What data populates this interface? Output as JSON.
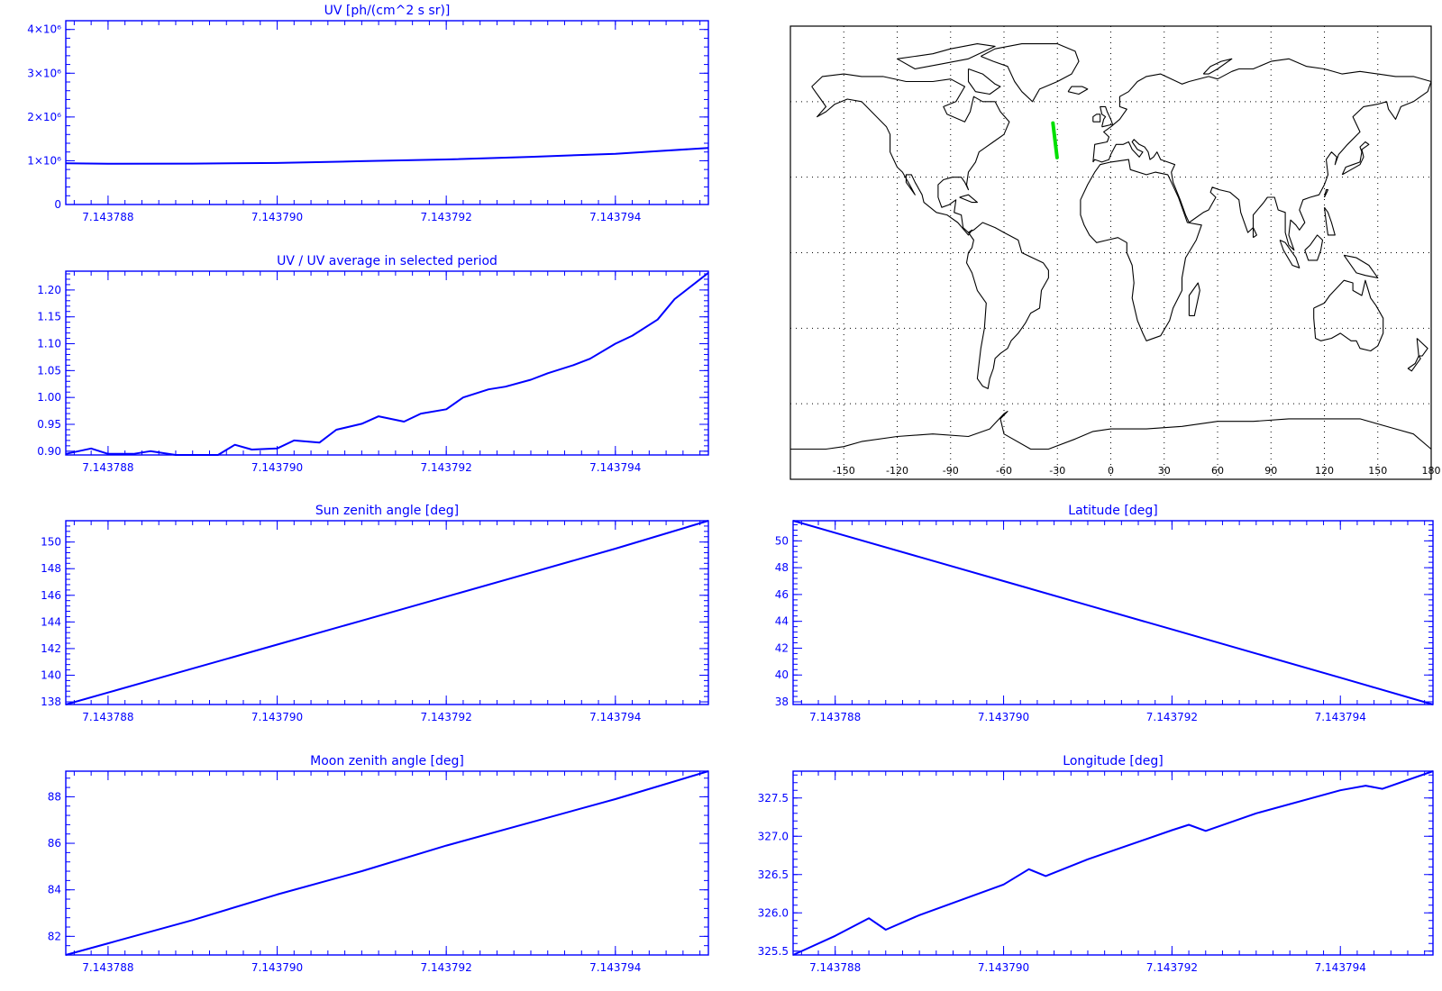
{
  "chart_data": [
    {
      "id": "uv",
      "type": "line",
      "title": "UV [ph/(cm^2 s sr)]",
      "xlabel": "",
      "ylabel": "",
      "xlim": [
        7.1437875,
        7.1437951
      ],
      "ylim": [
        0,
        4200000
      ],
      "xticks": [
        7.143788,
        7.14379,
        7.143792,
        7.143794
      ],
      "xtick_labels": [
        "7.143788",
        "7.143790",
        "7.143792",
        "7.143794"
      ],
      "yticks": [
        0,
        1000000,
        2000000,
        3000000,
        4000000
      ],
      "ytick_labels": [
        "0",
        "1×10⁶",
        "2×10⁶",
        "3×10⁶",
        "4×10⁶"
      ],
      "grid": false,
      "color": "#0000ff",
      "x": [
        7.1437875,
        7.143788,
        7.143789,
        7.14379,
        7.143791,
        7.143792,
        7.143793,
        7.143794,
        7.1437945,
        7.1437951
      ],
      "y": [
        940000,
        930000,
        935000,
        950000,
        990000,
        1030000,
        1090000,
        1160000,
        1220000,
        1290000
      ]
    },
    {
      "id": "uv_ratio",
      "type": "line",
      "title": "UV / UV average in selected period",
      "xlabel": "",
      "ylabel": "",
      "xlim": [
        7.1437875,
        7.1437951
      ],
      "ylim": [
        0.893,
        1.235
      ],
      "xticks": [
        7.143788,
        7.14379,
        7.143792,
        7.143794
      ],
      "xtick_labels": [
        "7.143788",
        "7.143790",
        "7.143792",
        "7.143794"
      ],
      "yticks": [
        0.9,
        0.95,
        1.0,
        1.05,
        1.1,
        1.15,
        1.2
      ],
      "ytick_labels": [
        "0.90",
        "0.95",
        "1.00",
        "1.05",
        "1.10",
        "1.15",
        "1.20"
      ],
      "grid": false,
      "color": "#0000ff",
      "x": [
        7.1437875,
        7.1437878,
        7.143788,
        7.1437883,
        7.1437885,
        7.1437888,
        7.143789,
        7.1437893,
        7.1437895,
        7.1437897,
        7.14379,
        7.1437902,
        7.1437905,
        7.1437907,
        7.143791,
        7.1437912,
        7.1437915,
        7.1437917,
        7.143792,
        7.1437922,
        7.1437925,
        7.1437927,
        7.143793,
        7.1437932,
        7.1437935,
        7.1437937,
        7.143794,
        7.1437942,
        7.1437945,
        7.1437947,
        7.1437951
      ],
      "y": [
        0.895,
        0.905,
        0.895,
        0.895,
        0.9,
        0.893,
        0.893,
        0.893,
        0.912,
        0.903,
        0.905,
        0.92,
        0.916,
        0.94,
        0.951,
        0.965,
        0.955,
        0.97,
        0.978,
        1.0,
        1.015,
        1.02,
        1.033,
        1.045,
        1.06,
        1.072,
        1.1,
        1.115,
        1.145,
        1.183,
        1.232
      ]
    },
    {
      "id": "sun_zenith",
      "type": "line",
      "title": "Sun zenith angle [deg]",
      "xlabel": "",
      "ylabel": "",
      "xlim": [
        7.1437875,
        7.1437951
      ],
      "ylim": [
        137.8,
        151.6
      ],
      "xticks": [
        7.143788,
        7.14379,
        7.143792,
        7.143794
      ],
      "xtick_labels": [
        "7.143788",
        "7.143790",
        "7.143792",
        "7.143794"
      ],
      "yticks": [
        138,
        140,
        142,
        144,
        146,
        148,
        150
      ],
      "ytick_labels": [
        "138",
        "140",
        "142",
        "144",
        "146",
        "148",
        "150"
      ],
      "grid": false,
      "color": "#0000ff",
      "x": [
        7.1437875,
        7.143788,
        7.143789,
        7.14379,
        7.143791,
        7.143792,
        7.143793,
        7.143794,
        7.1437951
      ],
      "y": [
        137.8,
        138.7,
        140.5,
        142.3,
        144.1,
        145.9,
        147.7,
        149.5,
        151.6
      ]
    },
    {
      "id": "latitude",
      "type": "line",
      "title": "Latitude [deg]",
      "xlabel": "",
      "ylabel": "",
      "xlim": [
        7.1437875,
        7.1437951
      ],
      "ylim": [
        37.8,
        51.5
      ],
      "xticks": [
        7.143788,
        7.14379,
        7.143792,
        7.143794
      ],
      "xtick_labels": [
        "7.143788",
        "7.143790",
        "7.143792",
        "7.143794"
      ],
      "yticks": [
        38,
        40,
        42,
        44,
        46,
        48,
        50
      ],
      "ytick_labels": [
        "38",
        "40",
        "42",
        "44",
        "46",
        "48",
        "50"
      ],
      "grid": false,
      "color": "#0000ff",
      "x": [
        7.1437875,
        7.143788,
        7.143789,
        7.14379,
        7.143791,
        7.143792,
        7.143793,
        7.143794,
        7.1437951
      ],
      "y": [
        51.5,
        50.6,
        48.8,
        47.0,
        45.2,
        43.4,
        41.6,
        39.8,
        37.8
      ]
    },
    {
      "id": "moon_zenith",
      "type": "line",
      "title": "Moon zenith angle [deg]",
      "xlabel": "",
      "ylabel": "",
      "xlim": [
        7.1437875,
        7.1437951
      ],
      "ylim": [
        81.2,
        89.1
      ],
      "xticks": [
        7.143788,
        7.14379,
        7.143792,
        7.143794
      ],
      "xtick_labels": [
        "7.143788",
        "7.143790",
        "7.143792",
        "7.143794"
      ],
      "yticks": [
        82,
        84,
        86,
        88
      ],
      "ytick_labels": [
        "82",
        "84",
        "86",
        "88"
      ],
      "grid": false,
      "color": "#0000ff",
      "x": [
        7.1437875,
        7.143788,
        7.143789,
        7.14379,
        7.143791,
        7.143792,
        7.143793,
        7.143794,
        7.1437951
      ],
      "y": [
        81.2,
        81.7,
        82.7,
        83.8,
        84.8,
        85.9,
        86.9,
        87.9,
        89.1
      ]
    },
    {
      "id": "longitude",
      "type": "line",
      "title": "Longitude [deg]",
      "xlabel": "",
      "ylabel": "",
      "xlim": [
        7.1437875,
        7.1437951
      ],
      "ylim": [
        325.45,
        327.85
      ],
      "xticks": [
        7.143788,
        7.14379,
        7.143792,
        7.143794
      ],
      "xtick_labels": [
        "7.143788",
        "7.143790",
        "7.143792",
        "7.143794"
      ],
      "yticks": [
        325.5,
        326.0,
        326.5,
        327.0,
        327.5
      ],
      "ytick_labels": [
        "325.5",
        "326.0",
        "326.5",
        "327.0",
        "327.5"
      ],
      "grid": false,
      "color": "#0000ff",
      "x": [
        7.1437875,
        7.143788,
        7.1437884,
        7.1437886,
        7.143789,
        7.14379,
        7.1437903,
        7.1437905,
        7.143791,
        7.143792,
        7.1437922,
        7.1437924,
        7.143793,
        7.143794,
        7.1437943,
        7.1437945,
        7.1437951
      ],
      "y": [
        325.45,
        325.7,
        325.93,
        325.78,
        325.97,
        326.37,
        326.57,
        326.48,
        326.7,
        327.08,
        327.15,
        327.07,
        327.3,
        327.6,
        327.66,
        327.62,
        327.85
      ]
    }
  ],
  "map": {
    "xtick_labels": [
      "-150",
      "-120",
      "-90",
      "-60",
      "-30",
      "0",
      "30",
      "60",
      "90",
      "120",
      "150",
      "180"
    ],
    "track_color": "#00e000",
    "track": [
      {
        "lon": -32.5,
        "lat": 51.5
      },
      {
        "lon": -30.2,
        "lat": 37.8
      }
    ]
  }
}
